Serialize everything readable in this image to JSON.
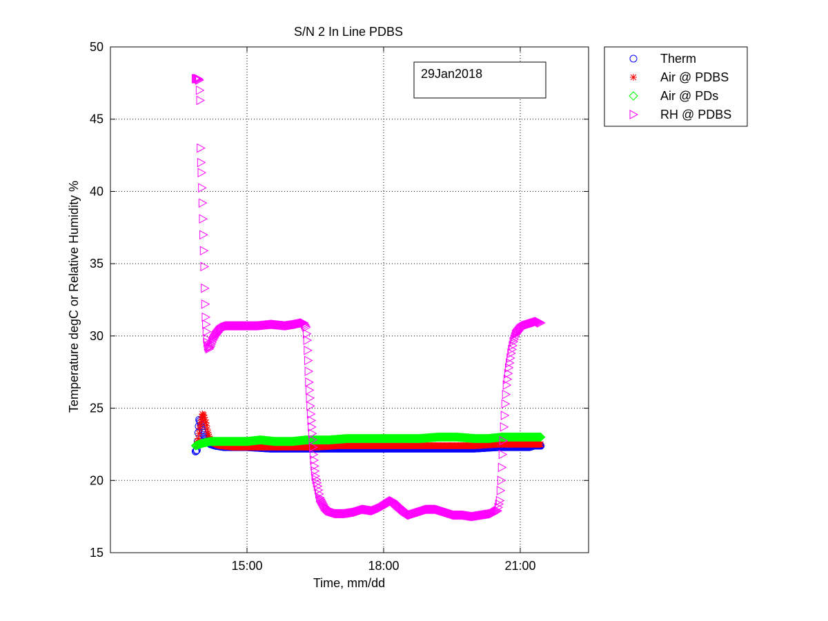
{
  "figure": {
    "background": "#ffffff"
  },
  "chart_data": {
    "type": "scatter",
    "title": "S/N 2 In Line PDBS",
    "xlabel": "Time, mm/dd",
    "ylabel": "Temperature degC or Relative Humidity %",
    "annotation": "29Jan2018",
    "grid": true,
    "legend_position": "outside-right",
    "x_unit": "hours (time of day)",
    "xlim": [
      12.0,
      22.5
    ],
    "ylim": [
      15,
      50
    ],
    "xticks": [
      15,
      18,
      21
    ],
    "xtick_labels": [
      "15:00",
      "18:00",
      "21:00"
    ],
    "yticks": [
      15,
      20,
      25,
      30,
      35,
      40,
      45,
      50
    ],
    "ytick_labels": [
      "15",
      "20",
      "25",
      "30",
      "35",
      "40",
      "45",
      "50"
    ],
    "series": [
      {
        "name": "Therm",
        "marker": "circle",
        "color": "#0000ff",
        "points": [
          [
            13.87,
            22.0
          ],
          [
            13.9,
            22.1
          ],
          [
            13.93,
            23.3
          ],
          [
            13.95,
            24.2
          ],
          [
            13.98,
            24.0
          ],
          [
            14.0,
            23.7
          ],
          [
            14.03,
            23.3
          ],
          [
            14.06,
            23.0
          ],
          [
            14.1,
            22.8
          ],
          [
            14.15,
            22.6
          ],
          [
            14.2,
            22.5
          ],
          [
            14.3,
            22.4
          ],
          [
            14.5,
            22.3
          ],
          [
            15.0,
            22.3
          ],
          [
            15.5,
            22.2
          ],
          [
            16.0,
            22.2
          ],
          [
            16.5,
            22.2
          ],
          [
            17.0,
            22.2
          ],
          [
            17.5,
            22.2
          ],
          [
            18.0,
            22.2
          ],
          [
            18.5,
            22.2
          ],
          [
            19.0,
            22.2
          ],
          [
            19.5,
            22.2
          ],
          [
            20.0,
            22.2
          ],
          [
            20.5,
            22.3
          ],
          [
            21.0,
            22.3
          ],
          [
            21.2,
            22.3
          ],
          [
            21.3,
            22.4
          ],
          [
            21.4,
            22.4
          ],
          [
            21.45,
            22.4
          ]
        ]
      },
      {
        "name": "Air @ PDBS",
        "marker": "star",
        "color": "#ff0000",
        "points": [
          [
            13.9,
            22.5
          ],
          [
            13.93,
            22.9
          ],
          [
            13.96,
            23.6
          ],
          [
            14.0,
            24.2
          ],
          [
            14.02,
            24.6
          ],
          [
            14.05,
            24.5
          ],
          [
            14.08,
            24.2
          ],
          [
            14.11,
            23.8
          ],
          [
            14.14,
            23.3
          ],
          [
            14.18,
            22.9
          ],
          [
            14.25,
            22.6
          ],
          [
            14.4,
            22.4
          ],
          [
            14.7,
            22.3
          ],
          [
            15.0,
            22.3
          ],
          [
            15.5,
            22.3
          ],
          [
            16.0,
            22.3
          ],
          [
            16.5,
            22.3
          ],
          [
            17.0,
            22.4
          ],
          [
            17.5,
            22.4
          ],
          [
            18.0,
            22.4
          ],
          [
            18.5,
            22.4
          ],
          [
            19.0,
            22.4
          ],
          [
            19.5,
            22.4
          ],
          [
            20.0,
            22.4
          ],
          [
            20.5,
            22.5
          ],
          [
            21.0,
            22.5
          ],
          [
            21.3,
            22.5
          ],
          [
            21.45,
            22.5
          ]
        ]
      },
      {
        "name": "Air @ PDs",
        "marker": "diamond",
        "color": "#00ff00",
        "points": [
          [
            13.87,
            22.4
          ],
          [
            13.95,
            22.5
          ],
          [
            14.05,
            22.6
          ],
          [
            14.2,
            22.7
          ],
          [
            14.4,
            22.7
          ],
          [
            14.7,
            22.7
          ],
          [
            15.0,
            22.7
          ],
          [
            15.3,
            22.8
          ],
          [
            15.6,
            22.7
          ],
          [
            16.0,
            22.7
          ],
          [
            16.3,
            22.8
          ],
          [
            16.5,
            22.8
          ],
          [
            16.8,
            22.8
          ],
          [
            17.2,
            22.9
          ],
          [
            17.6,
            22.9
          ],
          [
            18.0,
            22.9
          ],
          [
            18.4,
            22.9
          ],
          [
            18.8,
            22.9
          ],
          [
            19.2,
            23.0
          ],
          [
            19.6,
            23.0
          ],
          [
            20.0,
            22.9
          ],
          [
            20.3,
            22.9
          ],
          [
            20.6,
            23.0
          ],
          [
            21.0,
            23.0
          ],
          [
            21.3,
            23.0
          ],
          [
            21.45,
            23.0
          ]
        ]
      },
      {
        "name": "RH @ PDBS",
        "marker": "triangle-right",
        "color": "#ff00ff",
        "points": [
          [
            13.87,
            47.8
          ],
          [
            13.9,
            47.8
          ],
          [
            13.93,
            47.8
          ],
          [
            13.95,
            47.7
          ],
          [
            13.97,
            46.3
          ],
          [
            13.98,
            43.0
          ],
          [
            13.99,
            42.0
          ],
          [
            14.0,
            41.3
          ],
          [
            14.02,
            39.2
          ],
          [
            14.04,
            37.0
          ],
          [
            14.05,
            35.9
          ],
          [
            14.06,
            34.8
          ],
          [
            14.07,
            33.3
          ],
          [
            14.08,
            32.2
          ],
          [
            14.09,
            31.3
          ],
          [
            14.1,
            30.8
          ],
          [
            14.11,
            30.3
          ],
          [
            14.12,
            29.8
          ],
          [
            14.14,
            29.3
          ],
          [
            14.17,
            29.1
          ],
          [
            14.2,
            29.3
          ],
          [
            14.25,
            29.7
          ],
          [
            14.3,
            30.0
          ],
          [
            14.4,
            30.4
          ],
          [
            14.5,
            30.6
          ],
          [
            14.6,
            30.7
          ],
          [
            14.8,
            30.7
          ],
          [
            15.0,
            30.7
          ],
          [
            15.3,
            30.7
          ],
          [
            15.6,
            30.8
          ],
          [
            15.9,
            30.7
          ],
          [
            16.1,
            30.8
          ],
          [
            16.25,
            30.9
          ],
          [
            16.3,
            30.6
          ],
          [
            16.32,
            29.7
          ],
          [
            16.34,
            28.3
          ],
          [
            16.36,
            26.8
          ],
          [
            16.38,
            25.7
          ],
          [
            16.4,
            24.6
          ],
          [
            16.42,
            23.7
          ],
          [
            16.44,
            22.8
          ],
          [
            16.46,
            21.8
          ],
          [
            16.48,
            21.0
          ],
          [
            16.5,
            20.3
          ],
          [
            16.55,
            19.6
          ],
          [
            16.6,
            18.8
          ],
          [
            16.7,
            18.2
          ],
          [
            16.8,
            17.9
          ],
          [
            17.0,
            17.7
          ],
          [
            17.2,
            17.7
          ],
          [
            17.4,
            17.8
          ],
          [
            17.6,
            18.0
          ],
          [
            17.8,
            17.9
          ],
          [
            17.95,
            18.1
          ],
          [
            18.1,
            18.4
          ],
          [
            18.2,
            18.6
          ],
          [
            18.3,
            18.3
          ],
          [
            18.45,
            17.9
          ],
          [
            18.6,
            17.6
          ],
          [
            18.8,
            17.8
          ],
          [
            19.0,
            18.0
          ],
          [
            19.2,
            18.0
          ],
          [
            19.4,
            17.8
          ],
          [
            19.6,
            17.6
          ],
          [
            19.8,
            17.6
          ],
          [
            20.0,
            17.5
          ],
          [
            20.2,
            17.6
          ],
          [
            20.4,
            17.7
          ],
          [
            20.5,
            17.9
          ],
          [
            20.55,
            18.6
          ],
          [
            20.58,
            20.0
          ],
          [
            20.61,
            21.8
          ],
          [
            20.64,
            23.7
          ],
          [
            20.67,
            25.3
          ],
          [
            20.7,
            26.6
          ],
          [
            20.75,
            27.8
          ],
          [
            20.8,
            28.8
          ],
          [
            20.85,
            29.6
          ],
          [
            20.9,
            30.1
          ],
          [
            21.0,
            30.5
          ],
          [
            21.1,
            30.7
          ],
          [
            21.2,
            30.8
          ],
          [
            21.3,
            30.9
          ],
          [
            21.4,
            31.0
          ],
          [
            21.45,
            30.9
          ]
        ]
      }
    ]
  }
}
